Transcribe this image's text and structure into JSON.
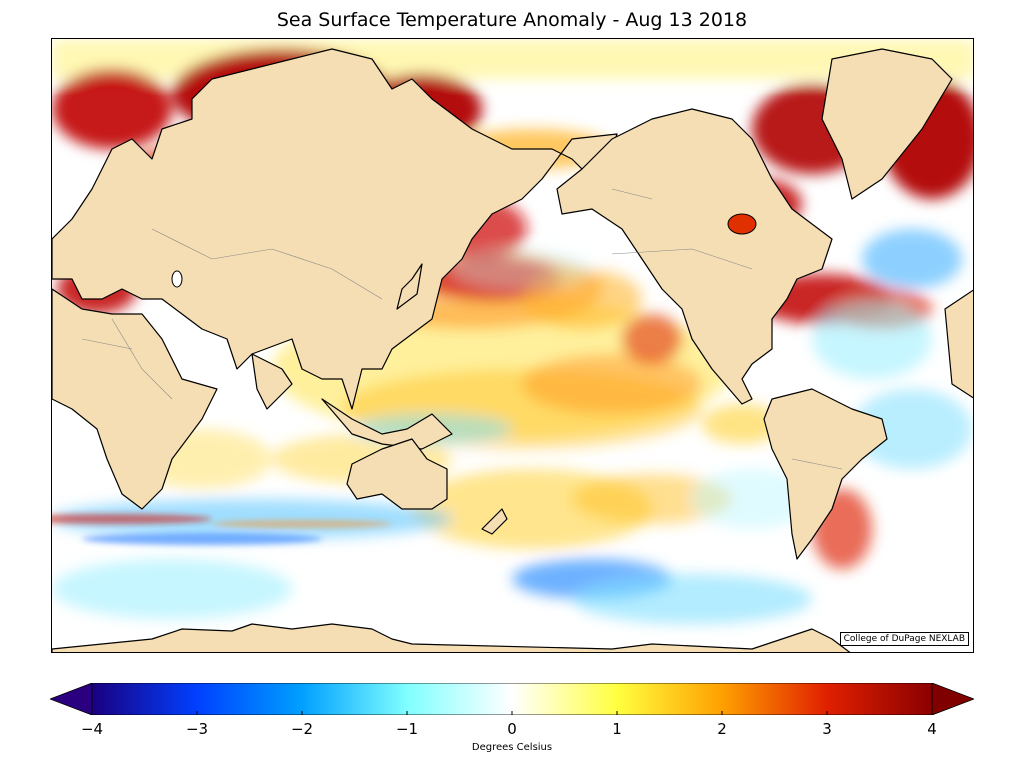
{
  "title": "Sea Surface Temperature Anomaly - Aug 13 2018",
  "credit": "College of DuPage NEXLAB",
  "map": {
    "projection": "cylindrical",
    "center_longitude": "Pacific",
    "land_color": "#f5deb3",
    "coastline_color": "#000000",
    "border_color": "#888888",
    "anomaly_features": [
      {
        "region": "Arctic / Barents-Kara Sea",
        "anomaly": "warm",
        "strength": 4
      },
      {
        "region": "Northeast Atlantic / Baltic",
        "anomaly": "warm",
        "strength": 3.5
      },
      {
        "region": "Mediterranean Sea",
        "anomaly": "warm",
        "strength": 3
      },
      {
        "region": "Sea of Okhotsk",
        "anomaly": "warm",
        "strength": 3
      },
      {
        "region": "Northwest Pacific",
        "anomaly": "warm",
        "strength": 3
      },
      {
        "region": "Gulf of Alaska",
        "anomaly": "warm",
        "strength": 1.5
      },
      {
        "region": "Northwest Atlantic / Gulf Stream",
        "anomaly": "warm",
        "strength": 3.5
      },
      {
        "region": "Hudson Bay / Baffin Bay",
        "anomaly": "warm",
        "strength": 3
      },
      {
        "region": "East of Greenland",
        "anomaly": "warm",
        "strength": 4
      },
      {
        "region": "North Atlantic central",
        "anomaly": "cool",
        "strength": -1.5
      },
      {
        "region": "Southern Ocean south of Pacific",
        "anomaly": "cool",
        "strength": -2.5
      },
      {
        "region": "Southern Indian Ocean",
        "anomaly": "cool",
        "strength": -2
      },
      {
        "region": "Equatorial East Pacific",
        "anomaly": "warm",
        "strength": 1.5
      },
      {
        "region": "Brazil-Malvinas Confluence",
        "anomaly": "warm",
        "strength": 3
      }
    ]
  },
  "colorbar": {
    "label": "Degrees Celsius",
    "min": -4,
    "max": 4,
    "ticks": [
      "−4",
      "−3",
      "−2",
      "−1",
      "0",
      "1",
      "2",
      "3",
      "4"
    ],
    "tick_values": [
      -4,
      -3,
      -2,
      -1,
      0,
      1,
      2,
      3,
      4
    ],
    "colors": [
      "#1a0080",
      "#0040ff",
      "#00a0ff",
      "#80ffff",
      "#ffffff",
      "#ffff40",
      "#ffa000",
      "#e02000",
      "#8b0000"
    ]
  }
}
